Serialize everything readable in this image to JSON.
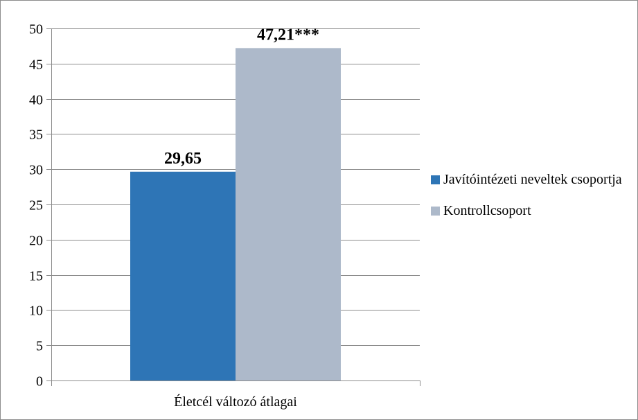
{
  "chart_data": {
    "type": "bar",
    "categories": [
      "Életcél változó átlagai"
    ],
    "series": [
      {
        "name": "Javítóintézeti neveltek csoportja",
        "values": [
          29.65
        ],
        "label": "29,65",
        "color": "#2e75b6"
      },
      {
        "name": "Kontrollcsoport",
        "values": [
          47.21
        ],
        "label": "47,21***",
        "color": "#adb9ca"
      }
    ],
    "ylim": [
      0,
      50
    ],
    "yticks": [
      "0",
      "5",
      "10",
      "15",
      "20",
      "25",
      "30",
      "35",
      "40",
      "45",
      "50"
    ],
    "grid": true,
    "legend_position": "right"
  }
}
